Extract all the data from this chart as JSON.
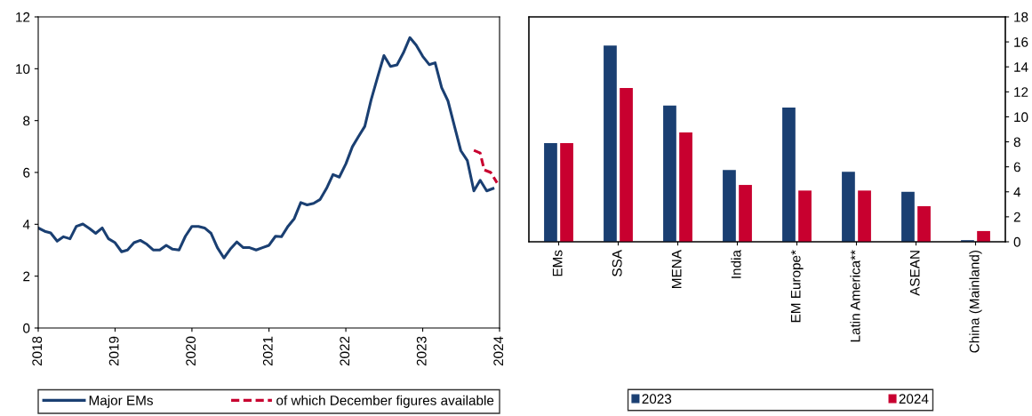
{
  "chart_data": [
    {
      "type": "line",
      "legend": "bottom",
      "grid": false,
      "marker": "none",
      "xlim": [
        "2018-01",
        "2024-01"
      ],
      "xticks": [
        {
          "value": "2018-01",
          "label": "2018"
        },
        {
          "value": "2019-01",
          "label": "2019"
        },
        {
          "value": "2020-01",
          "label": "2020"
        },
        {
          "value": "2021-01",
          "label": "2021"
        },
        {
          "value": "2022-01",
          "label": "2022"
        },
        {
          "value": "2023-01",
          "label": "2023"
        },
        {
          "value": "2024-01",
          "label": "2024"
        }
      ],
      "ylim": [
        0,
        12
      ],
      "yticks": [
        0,
        2,
        4,
        6,
        8,
        10,
        12
      ],
      "series": [
        {
          "name": "Major EMs",
          "color": "#1a3f72",
          "line_style": "solid",
          "x": [
            "2018-01",
            "2018-02",
            "2018-03",
            "2018-04",
            "2018-05",
            "2018-06",
            "2018-07",
            "2018-08",
            "2018-09",
            "2018-10",
            "2018-11",
            "2018-12",
            "2019-01",
            "2019-02",
            "2019-03",
            "2019-04",
            "2019-05",
            "2019-06",
            "2019-07",
            "2019-08",
            "2019-09",
            "2019-10",
            "2019-11",
            "2019-12",
            "2020-01",
            "2020-02",
            "2020-03",
            "2020-04",
            "2020-05",
            "2020-06",
            "2020-07",
            "2020-08",
            "2020-09",
            "2020-10",
            "2020-11",
            "2020-12",
            "2021-01",
            "2021-02",
            "2021-03",
            "2021-04",
            "2021-05",
            "2021-06",
            "2021-07",
            "2021-08",
            "2021-09",
            "2021-10",
            "2021-11",
            "2021-12",
            "2022-01",
            "2022-02",
            "2022-03",
            "2022-04",
            "2022-05",
            "2022-06",
            "2022-07",
            "2022-08",
            "2022-09",
            "2022-10",
            "2022-11",
            "2022-12",
            "2023-01",
            "2023-02",
            "2023-03",
            "2023-04",
            "2023-05",
            "2023-06",
            "2023-07",
            "2023-08",
            "2023-09",
            "2023-10",
            "2023-11",
            "2023-12"
          ],
          "values": [
            3.86,
            3.73,
            3.67,
            3.35,
            3.52,
            3.44,
            3.92,
            4.01,
            3.84,
            3.65,
            3.86,
            3.44,
            3.29,
            2.94,
            3.01,
            3.29,
            3.38,
            3.23,
            3.01,
            3.01,
            3.19,
            3.04,
            3.01,
            3.54,
            3.92,
            3.92,
            3.86,
            3.65,
            3.1,
            2.7,
            3.04,
            3.32,
            3.1,
            3.1,
            3.01,
            3.1,
            3.19,
            3.54,
            3.52,
            3.92,
            4.22,
            4.84,
            4.75,
            4.81,
            4.96,
            5.38,
            5.92,
            5.82,
            6.33,
            6.99,
            7.37,
            7.78,
            8.8,
            9.68,
            10.51,
            10.09,
            10.15,
            10.61,
            11.2,
            10.91,
            10.48,
            10.16,
            10.23,
            9.27,
            8.76,
            7.78,
            6.84,
            6.46,
            5.29,
            5.7,
            5.29,
            5.38
          ]
        },
        {
          "name": "of which December figures available",
          "color": "#c8002f",
          "line_style": "dashed",
          "x": [
            "2023-09-01",
            "2023-10-01",
            "2023-10-20",
            "2023-11-20",
            "2023-12-20"
          ],
          "values": [
            6.85,
            6.75,
            6.1,
            6.0,
            5.6
          ]
        }
      ]
    },
    {
      "type": "bar",
      "legend": "bottom",
      "grid": false,
      "categories": [
        "EMs",
        "SSA",
        "MENA",
        "India",
        "EM Europe*",
        "Latin America**",
        "ASEAN",
        "China (Mainland)"
      ],
      "y2lim": [
        0,
        18
      ],
      "y2ticks": [
        0,
        2,
        4,
        6,
        8,
        10,
        12,
        14,
        16,
        18
      ],
      "series": [
        {
          "name": "2023",
          "color": "#1a3f72",
          "axis": "y2",
          "values": [
            7.9,
            15.7,
            10.9,
            5.75,
            10.75,
            5.6,
            4.0,
            0.13
          ]
        },
        {
          "name": "2024",
          "color": "#c8002f",
          "axis": "y2",
          "values": [
            7.9,
            12.3,
            8.75,
            4.55,
            4.1,
            4.1,
            2.85,
            0.86
          ]
        }
      ]
    }
  ]
}
